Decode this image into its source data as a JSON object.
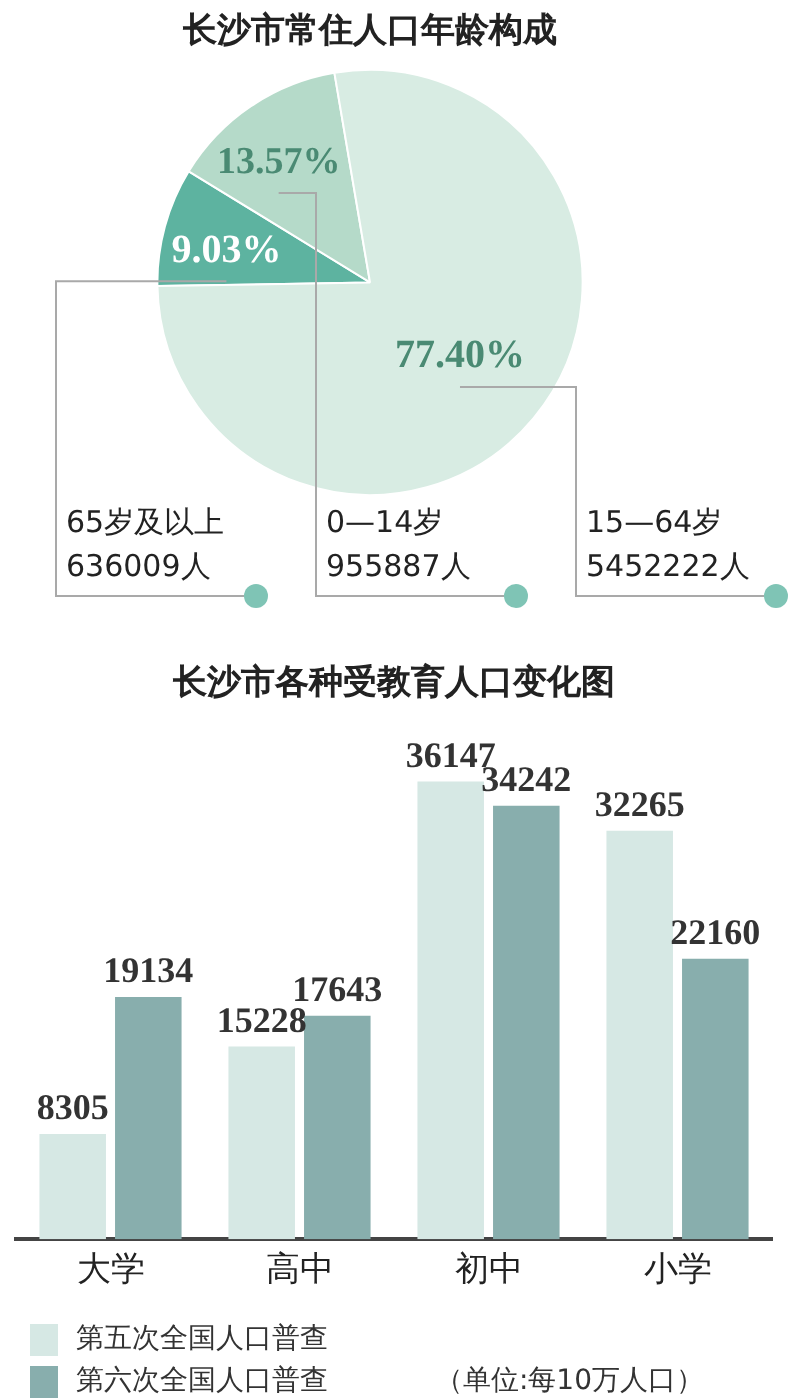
{
  "chart_data": [
    {
      "type": "pie",
      "title": "长沙市常住人口年龄构成",
      "categories": [
        "65岁及以上\n636009人",
        "0—14岁\n955887人",
        "15—64岁\n5452222人"
      ],
      "values": [
        9.03,
        13.57,
        77.4
      ],
      "value_labels": [
        "9.03%",
        "13.57%",
        "77.40%"
      ],
      "colors": [
        "#5db3a0",
        "#b5dac9",
        "#d8ece3"
      ]
    },
    {
      "type": "bar",
      "title": "长沙市各种受教育人口变化图",
      "categories": [
        "大学",
        "高中",
        "初中",
        "小学"
      ],
      "series": [
        {
          "name": "第五次全国人口普查",
          "color": "#d6e8e4",
          "values": [
            8305,
            15228,
            36147,
            32265
          ]
        },
        {
          "name": "第六次全国人口普查",
          "color": "#88aead",
          "values": [
            19134,
            17643,
            34242,
            22160
          ]
        }
      ],
      "data_labels": true,
      "legend": "bottom left",
      "tick_labels": "x",
      "annotations": [
        "（单位:每10万人口）"
      ]
    }
  ]
}
